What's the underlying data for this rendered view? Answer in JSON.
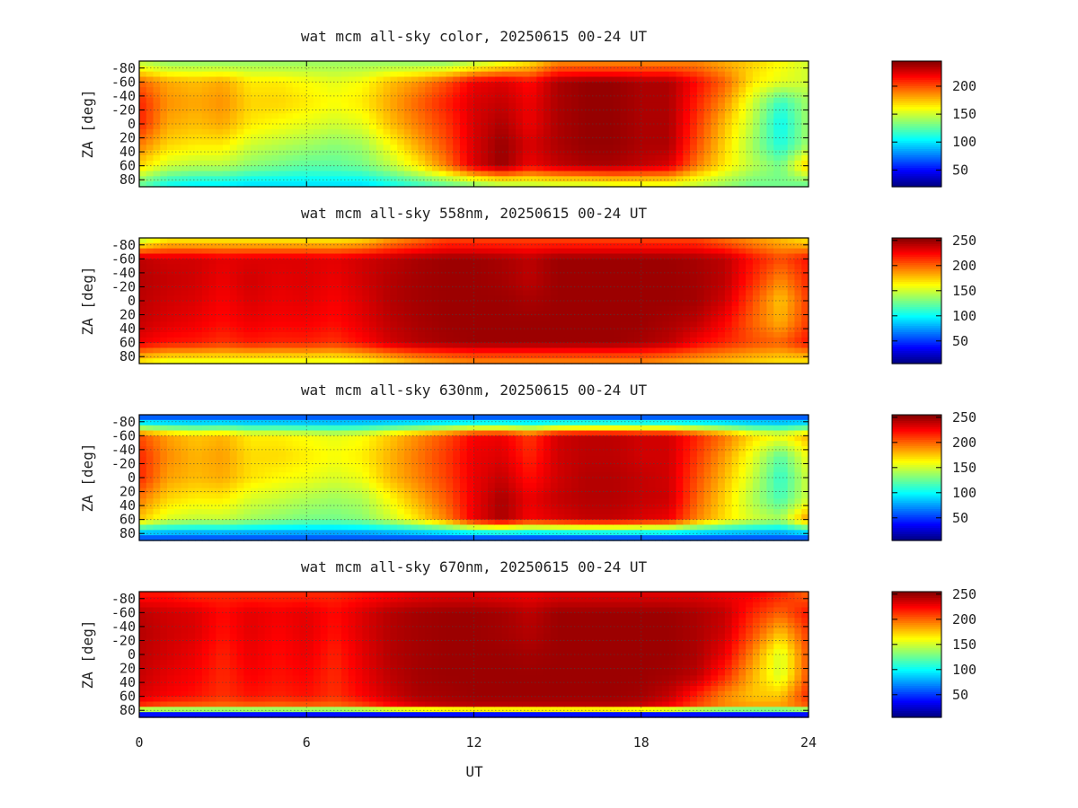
{
  "figure": {
    "xlabel": "UT",
    "ylabel": "ZA [deg]"
  },
  "chart_data": [
    {
      "type": "heatmap",
      "title": "wat mcm all-sky color, 20250615 00-24 UT",
      "x_unit": "UT",
      "xlim": [
        0,
        24
      ],
      "xticks": [
        "0",
        "6",
        "12",
        "18",
        "24"
      ],
      "ylabel": "ZA [deg]",
      "yticks": [
        "-80",
        "-60",
        "-40",
        "-20",
        "0",
        "20",
        "40",
        "60",
        "80"
      ],
      "ylim": [
        -90,
        90
      ],
      "colorbar_ticks": [
        "50",
        "100",
        "150",
        "200"
      ],
      "clim": [
        20,
        245
      ],
      "colormap": "jet",
      "rows_za": [
        -85,
        -60,
        -30,
        0,
        30,
        60,
        85
      ],
      "cols_ut": [
        0,
        1,
        2,
        3,
        4,
        5,
        6,
        7,
        8,
        9,
        10,
        11,
        12,
        13,
        14,
        15,
        16,
        17,
        18,
        19,
        20,
        21,
        22,
        23,
        24
      ],
      "values": [
        [
          150,
          140,
          140,
          140,
          140,
          140,
          140,
          140,
          140,
          140,
          140,
          140,
          150,
          160,
          170,
          190,
          190,
          190,
          190,
          190,
          190,
          180,
          170,
          160,
          150
        ],
        [
          195,
          180,
          175,
          180,
          165,
          165,
          160,
          155,
          160,
          175,
          185,
          200,
          220,
          225,
          215,
          235,
          240,
          240,
          235,
          235,
          215,
          195,
          165,
          155,
          150
        ],
        [
          210,
          185,
          180,
          185,
          170,
          170,
          165,
          160,
          165,
          180,
          195,
          210,
          225,
          230,
          220,
          235,
          240,
          240,
          235,
          235,
          210,
          185,
          150,
          115,
          140
        ],
        [
          210,
          180,
          175,
          180,
          165,
          160,
          155,
          150,
          155,
          175,
          190,
          205,
          225,
          235,
          220,
          235,
          240,
          240,
          235,
          235,
          205,
          175,
          145,
          105,
          140
        ],
        [
          190,
          170,
          165,
          165,
          150,
          145,
          140,
          135,
          140,
          160,
          180,
          200,
          225,
          240,
          225,
          235,
          240,
          240,
          235,
          235,
          200,
          170,
          140,
          110,
          140
        ],
        [
          170,
          150,
          145,
          145,
          135,
          130,
          125,
          125,
          130,
          145,
          165,
          190,
          225,
          240,
          220,
          230,
          235,
          235,
          230,
          225,
          190,
          165,
          145,
          130,
          175
        ],
        [
          130,
          110,
          105,
          105,
          100,
          100,
          100,
          100,
          100,
          110,
          120,
          130,
          140,
          150,
          150,
          155,
          155,
          160,
          160,
          160,
          150,
          140,
          130,
          130,
          130
        ]
      ]
    },
    {
      "type": "heatmap",
      "title": "wat mcm all-sky 558nm, 20250615 00-24 UT",
      "x_unit": "UT",
      "xlim": [
        0,
        24
      ],
      "xticks": [
        "0",
        "6",
        "12",
        "18",
        "24"
      ],
      "ylabel": "ZA [deg]",
      "yticks": [
        "-80",
        "-60",
        "-40",
        "-20",
        "0",
        "20",
        "40",
        "60",
        "80"
      ],
      "ylim": [
        -90,
        90
      ],
      "colorbar_ticks": [
        "50",
        "100",
        "150",
        "200",
        "250"
      ],
      "clim": [
        5,
        255
      ],
      "colormap": "jet",
      "rows_za": [
        -85,
        -60,
        -30,
        0,
        30,
        60,
        85
      ],
      "cols_ut": [
        0,
        1,
        2,
        3,
        4,
        5,
        6,
        7,
        8,
        9,
        10,
        11,
        12,
        13,
        14,
        15,
        16,
        17,
        18,
        19,
        20,
        21,
        22,
        23,
        24
      ],
      "values": [
        [
          150,
          170,
          170,
          170,
          170,
          170,
          170,
          170,
          175,
          190,
          200,
          210,
          210,
          210,
          210,
          210,
          210,
          210,
          210,
          210,
          210,
          200,
          190,
          180,
          170
        ],
        [
          240,
          235,
          235,
          230,
          232,
          232,
          232,
          230,
          235,
          240,
          245,
          248,
          248,
          245,
          240,
          248,
          248,
          248,
          248,
          248,
          245,
          240,
          220,
          205,
          220
        ],
        [
          242,
          238,
          235,
          228,
          235,
          230,
          232,
          228,
          235,
          242,
          246,
          248,
          248,
          246,
          240,
          248,
          248,
          248,
          248,
          248,
          246,
          240,
          215,
          190,
          215
        ],
        [
          240,
          235,
          232,
          225,
          232,
          228,
          230,
          225,
          232,
          242,
          246,
          248,
          248,
          248,
          245,
          248,
          248,
          248,
          248,
          248,
          246,
          235,
          205,
          175,
          210
        ],
        [
          238,
          232,
          228,
          222,
          228,
          225,
          226,
          222,
          230,
          240,
          245,
          248,
          248,
          248,
          248,
          248,
          248,
          248,
          248,
          245,
          240,
          225,
          200,
          180,
          210
        ],
        [
          228,
          220,
          218,
          212,
          218,
          215,
          216,
          212,
          222,
          235,
          242,
          246,
          248,
          248,
          248,
          248,
          248,
          248,
          245,
          240,
          225,
          215,
          205,
          200,
          220
        ],
        [
          170,
          160,
          160,
          160,
          160,
          160,
          160,
          160,
          165,
          175,
          185,
          190,
          195,
          195,
          195,
          195,
          195,
          195,
          195,
          190,
          185,
          180,
          175,
          170,
          170
        ]
      ]
    },
    {
      "type": "heatmap",
      "title": "wat mcm all-sky 630nm, 20250615 00-24 UT",
      "x_unit": "UT",
      "xlim": [
        0,
        24
      ],
      "xticks": [
        "0",
        "6",
        "12",
        "18",
        "24"
      ],
      "ylabel": "ZA [deg]",
      "yticks": [
        "-80",
        "-60",
        "-40",
        "-20",
        "0",
        "20",
        "40",
        "60",
        "80"
      ],
      "ylim": [
        -90,
        90
      ],
      "colorbar_ticks": [
        "50",
        "100",
        "150",
        "200",
        "250"
      ],
      "clim": [
        5,
        255
      ],
      "colormap": "jet",
      "rows_za": [
        -85,
        -60,
        -30,
        0,
        30,
        60,
        85
      ],
      "cols_ut": [
        0,
        1,
        2,
        3,
        4,
        5,
        6,
        7,
        8,
        9,
        10,
        11,
        12,
        13,
        14,
        15,
        16,
        17,
        18,
        19,
        20,
        21,
        22,
        23,
        24
      ],
      "values": [
        [
          60,
          60,
          60,
          60,
          60,
          60,
          60,
          60,
          60,
          60,
          60,
          60,
          60,
          60,
          60,
          60,
          60,
          60,
          60,
          60,
          60,
          60,
          60,
          60,
          60
        ],
        [
          205,
          185,
          175,
          180,
          165,
          165,
          160,
          155,
          160,
          175,
          190,
          205,
          225,
          228,
          210,
          235,
          240,
          240,
          235,
          235,
          215,
          195,
          170,
          160,
          180
        ],
        [
          215,
          190,
          180,
          185,
          170,
          170,
          165,
          160,
          165,
          180,
          195,
          210,
          228,
          232,
          215,
          235,
          240,
          240,
          235,
          235,
          210,
          185,
          155,
          120,
          160
        ],
        [
          215,
          185,
          178,
          182,
          168,
          162,
          158,
          152,
          158,
          178,
          192,
          208,
          228,
          238,
          220,
          235,
          242,
          242,
          238,
          235,
          205,
          178,
          148,
          110,
          150
        ],
        [
          195,
          172,
          165,
          166,
          152,
          148,
          142,
          138,
          142,
          162,
          182,
          202,
          228,
          245,
          228,
          238,
          242,
          242,
          238,
          236,
          200,
          172,
          142,
          115,
          150
        ],
        [
          175,
          152,
          146,
          147,
          138,
          133,
          128,
          127,
          132,
          148,
          168,
          192,
          228,
          245,
          225,
          232,
          238,
          238,
          232,
          228,
          192,
          168,
          150,
          140,
          190
        ],
        [
          60,
          60,
          60,
          60,
          60,
          60,
          60,
          60,
          60,
          60,
          60,
          60,
          60,
          60,
          60,
          60,
          60,
          60,
          60,
          60,
          60,
          60,
          60,
          60,
          60
        ]
      ]
    },
    {
      "type": "heatmap",
      "title": "wat mcm all-sky 670nm, 20250615 00-24 UT",
      "x_unit": "UT",
      "xlim": [
        0,
        24
      ],
      "xticks": [
        "0",
        "6",
        "12",
        "18",
        "24"
      ],
      "ylabel": "ZA [deg]",
      "yticks": [
        "-80",
        "-60",
        "-40",
        "-20",
        "0",
        "20",
        "40",
        "60",
        "80"
      ],
      "ylim": [
        -90,
        90
      ],
      "colorbar_ticks": [
        "50",
        "100",
        "150",
        "200",
        "250"
      ],
      "clim": [
        5,
        255
      ],
      "colormap": "jet",
      "rows_za": [
        -85,
        -60,
        -30,
        0,
        30,
        60,
        75,
        85
      ],
      "cols_ut": [
        0,
        1,
        2,
        3,
        4,
        5,
        6,
        7,
        8,
        9,
        10,
        11,
        12,
        13,
        14,
        15,
        16,
        17,
        18,
        19,
        20,
        21,
        22,
        23,
        24
      ],
      "values": [
        [
          220,
          220,
          215,
          215,
          215,
          215,
          215,
          215,
          220,
          225,
          230,
          232,
          232,
          230,
          228,
          232,
          232,
          232,
          232,
          232,
          232,
          228,
          225,
          215,
          200
        ],
        [
          240,
          235,
          232,
          222,
          230,
          226,
          230,
          222,
          232,
          242,
          246,
          248,
          248,
          246,
          240,
          248,
          248,
          248,
          248,
          248,
          244,
          238,
          215,
          200,
          220
        ],
        [
          242,
          236,
          232,
          220,
          230,
          224,
          230,
          220,
          232,
          242,
          246,
          248,
          248,
          246,
          242,
          248,
          248,
          248,
          248,
          248,
          244,
          235,
          205,
          175,
          210
        ],
        [
          240,
          234,
          228,
          216,
          228,
          222,
          228,
          216,
          230,
          242,
          246,
          248,
          248,
          248,
          246,
          248,
          248,
          248,
          248,
          248,
          244,
          228,
          190,
          150,
          205
        ],
        [
          238,
          230,
          225,
          214,
          225,
          220,
          224,
          214,
          228,
          240,
          246,
          248,
          248,
          248,
          248,
          248,
          248,
          248,
          248,
          246,
          240,
          215,
          180,
          150,
          205
        ],
        [
          232,
          225,
          220,
          212,
          220,
          216,
          220,
          212,
          224,
          236,
          244,
          246,
          248,
          248,
          248,
          248,
          248,
          248,
          246,
          238,
          215,
          190,
          175,
          175,
          215
        ],
        [
          210,
          200,
          198,
          195,
          198,
          196,
          198,
          196,
          205,
          220,
          232,
          238,
          240,
          240,
          240,
          240,
          240,
          240,
          236,
          225,
          205,
          190,
          185,
          185,
          200
        ],
        [
          40,
          40,
          40,
          40,
          40,
          40,
          40,
          40,
          40,
          40,
          40,
          40,
          40,
          40,
          40,
          40,
          40,
          40,
          40,
          40,
          40,
          40,
          40,
          40,
          40
        ]
      ]
    }
  ]
}
